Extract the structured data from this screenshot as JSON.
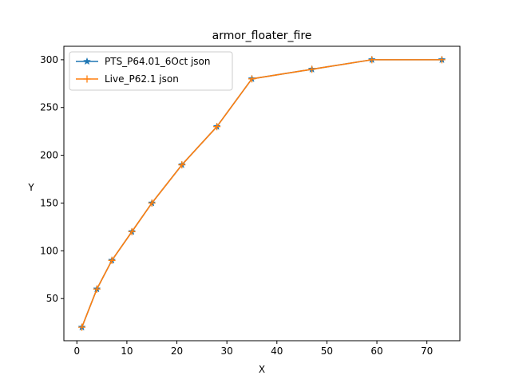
{
  "chart_data": {
    "type": "line",
    "title": "armor_floater_fire",
    "xlabel": "X",
    "ylabel": "Y",
    "xlim": [
      -2.6,
      76.6
    ],
    "ylim": [
      5.9,
      314.1
    ],
    "xticks": [
      0,
      10,
      20,
      30,
      40,
      50,
      60,
      70
    ],
    "yticks": [
      50,
      100,
      150,
      200,
      250,
      300
    ],
    "grid": false,
    "legend": "upper-left",
    "series": [
      {
        "name": "PTS_P64.01_6Oct json",
        "color": "#1f77b4",
        "marker": "star",
        "x": [
          1,
          4,
          7,
          11,
          15,
          21,
          28,
          35,
          47,
          59,
          73
        ],
        "y": [
          20,
          60,
          90,
          120,
          150,
          190,
          230,
          280,
          290,
          300,
          300
        ]
      },
      {
        "name": "Live_P62.1 json",
        "color": "#ff7f0e",
        "marker": "plus",
        "x": [
          1,
          4,
          7,
          11,
          15,
          21,
          28,
          35,
          47,
          59,
          73
        ],
        "y": [
          20,
          60,
          90,
          120,
          150,
          190,
          230,
          280,
          290,
          300,
          300
        ]
      }
    ]
  }
}
